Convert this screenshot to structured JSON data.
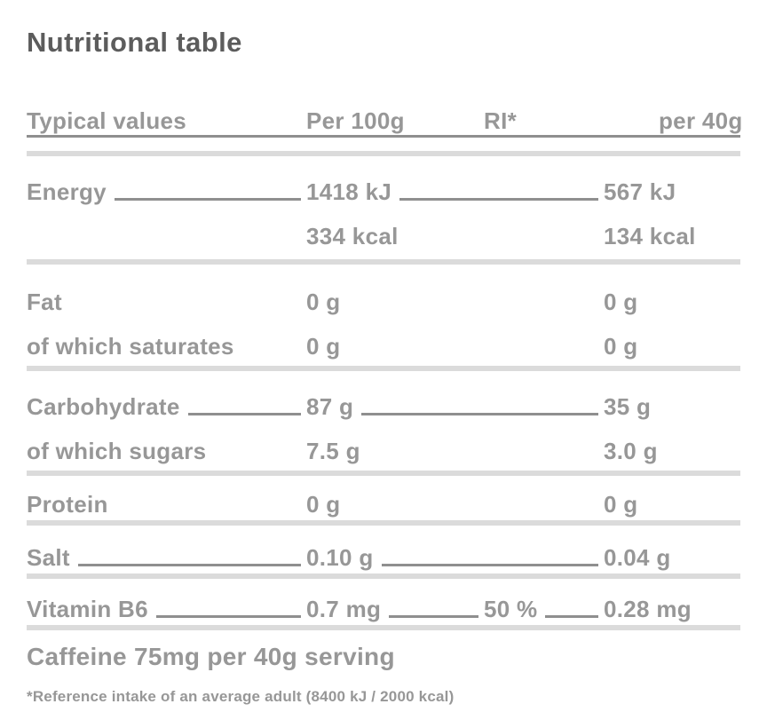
{
  "title": "Nutritional table",
  "colors": {
    "title_text": "#5c5c5c",
    "body_text": "#979797",
    "separator": "#dbdbdb",
    "leader_line": "#8f8f8f",
    "background": "#ffffff"
  },
  "table": {
    "headers": {
      "typical_values": "Typical values",
      "per_100g": "Per 100g",
      "ri": "RI*",
      "per_40g": "per 40g"
    },
    "rows": [
      {
        "label": "Energy",
        "per_100g": "1418 kJ",
        "ri": "",
        "per_40g": "567 kJ",
        "leader": true,
        "separator_after": false
      },
      {
        "label": "",
        "per_100g": "334 kcal",
        "ri": "",
        "per_40g": "134 kcal",
        "leader": false,
        "separator_after": true
      },
      {
        "label": "Fat",
        "per_100g": "0 g",
        "ri": "",
        "per_40g": "0 g",
        "leader": false,
        "separator_after": false
      },
      {
        "label": "of which saturates",
        "per_100g": "0 g",
        "ri": "",
        "per_40g": "0 g",
        "leader": false,
        "separator_after": true
      },
      {
        "label": "Carbohydrate",
        "per_100g": "87 g",
        "ri": "",
        "per_40g": "35 g",
        "leader": true,
        "separator_after": false
      },
      {
        "label": "of which sugars",
        "per_100g": "7.5 g",
        "ri": "",
        "per_40g": "3.0 g",
        "leader": false,
        "separator_after": true
      },
      {
        "label": "Protein",
        "per_100g": "0 g",
        "ri": "",
        "per_40g": "0 g",
        "leader": false,
        "separator_after": true
      },
      {
        "label": "Salt",
        "per_100g": "0.10 g",
        "ri": "",
        "per_40g": "0.04 g",
        "leader": true,
        "separator_after": true
      },
      {
        "label": "Vitamin B6",
        "per_100g": "0.7 mg",
        "ri": "50 %",
        "per_40g": "0.28 mg",
        "leader": true,
        "separator_after": true
      }
    ],
    "caffeine_note": "Caffeine 75mg per 40g serving",
    "footnote": "*Reference intake of an average adult (8400 kJ / 2000 kcal)"
  }
}
